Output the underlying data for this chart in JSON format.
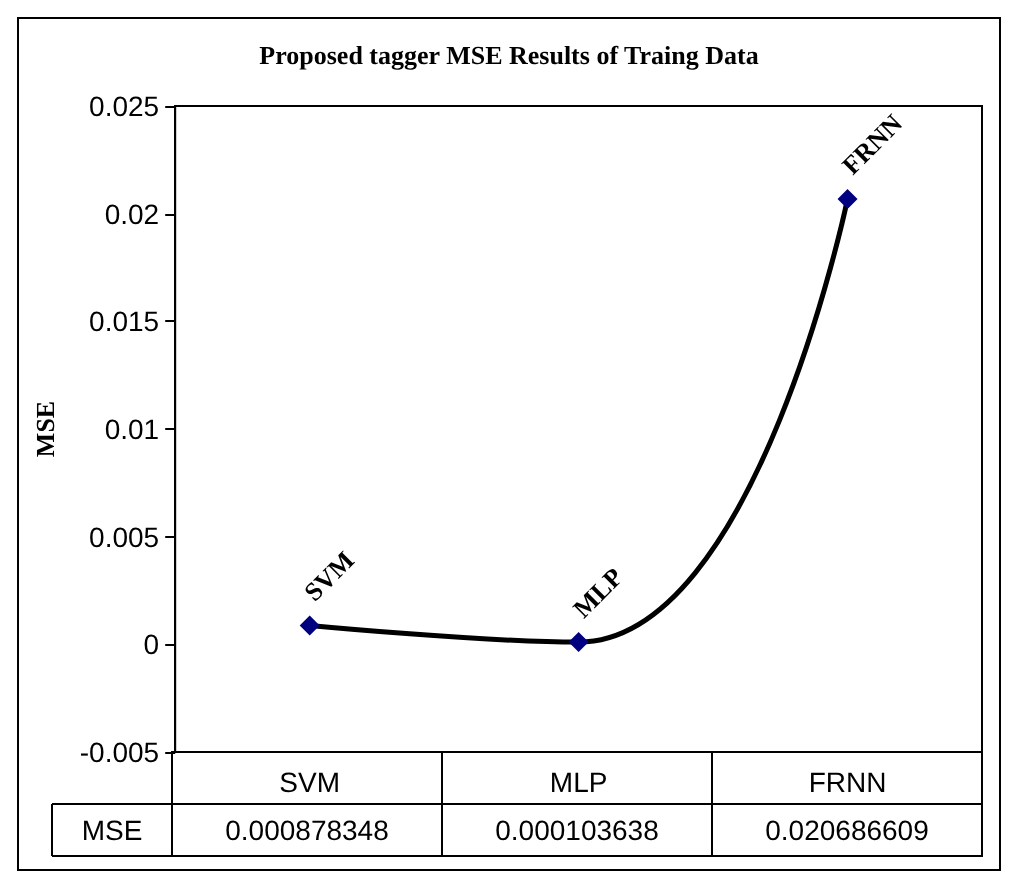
{
  "chart_data": {
    "type": "line",
    "title": "Proposed tagger MSE Results of Traing Data",
    "ylabel": "MSE",
    "categories": [
      "SVM",
      "MLP",
      "FRNN"
    ],
    "series": [
      {
        "name": "MSE",
        "color": "#000080",
        "values": [
          0.000878348,
          0.000103638,
          0.020686609
        ]
      }
    ],
    "ylim": [
      -0.005,
      0.025
    ],
    "yticks": [
      -0.005,
      0,
      0.005,
      0.01,
      0.015,
      0.02,
      0.025
    ],
    "grid": false,
    "legend": "bottom",
    "marker": "diamond",
    "line_style": "solid",
    "data_labels": true,
    "annotations": [
      {
        "text": "SVM",
        "x": "SVM",
        "y": 0.000878348
      },
      {
        "text": "MLP",
        "x": "MLP",
        "y": 0.000103638
      },
      {
        "text": "FRNN",
        "x": "FRNN",
        "y": 0.020686609
      }
    ]
  }
}
